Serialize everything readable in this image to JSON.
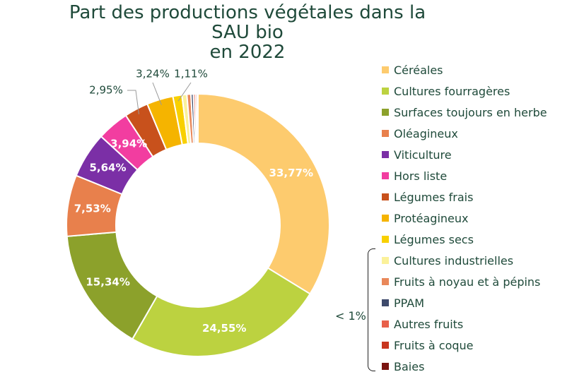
{
  "chart_data": {
    "type": "pie",
    "donut": true,
    "title": "Part des productions végétales dans la SAU bio en 2022",
    "title_line1": "Part des productions végétales dans la SAU bio",
    "title_line2": "en 2022",
    "legend_position": "right",
    "small_group_note": "< 1%",
    "slices": [
      {
        "label": "Céréales",
        "value": 33.77,
        "display": "33,77%",
        "color": "#FDCB6E"
      },
      {
        "label": "Cultures fourragères",
        "value": 24.55,
        "display": "24,55%",
        "color": "#BCD240"
      },
      {
        "label": "Surfaces toujours en herbe",
        "value": 15.34,
        "display": "15,34%",
        "color": "#8CA12B"
      },
      {
        "label": "Oléagineux",
        "value": 7.53,
        "display": "7,53%",
        "color": "#E8804C"
      },
      {
        "label": "Viticulture",
        "value": 5.64,
        "display": "5,64%",
        "color": "#7B2FA6"
      },
      {
        "label": "Hors liste",
        "value": 3.94,
        "display": "3,94%",
        "color": "#F23DA0"
      },
      {
        "label": "Légumes frais",
        "value": 2.95,
        "display": "2,95%",
        "color": "#C8511C"
      },
      {
        "label": "Protéagineux",
        "value": 3.24,
        "display": "3,24%",
        "color": "#F5B400"
      },
      {
        "label": "Légumes secs",
        "value": 1.11,
        "display": "1,11%",
        "color": "#F8D000"
      },
      {
        "label": "Cultures industrielles",
        "value": 0.6,
        "display": "",
        "color": "#FBF19A"
      },
      {
        "label": "Fruits à noyau et à pépins",
        "value": 0.5,
        "display": "",
        "color": "#E9885A"
      },
      {
        "label": "PPAM",
        "value": 0.3,
        "display": "",
        "color": "#3E4A6B"
      },
      {
        "label": "Autres fruits",
        "value": 0.25,
        "display": "",
        "color": "#E8604A"
      },
      {
        "label": "Fruits à coque",
        "value": 0.2,
        "display": "",
        "color": "#C8361F"
      },
      {
        "label": "Baies",
        "value": 0.1,
        "display": "",
        "color": "#7A1410"
      }
    ]
  }
}
